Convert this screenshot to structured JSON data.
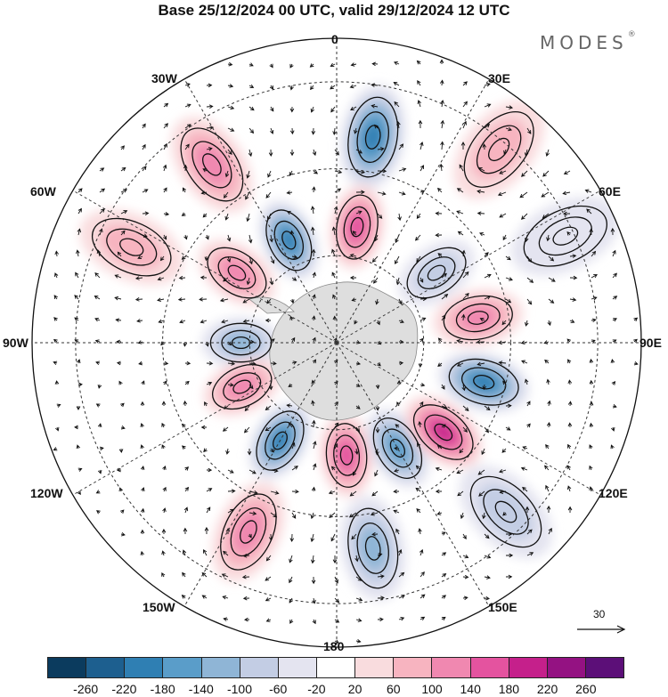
{
  "title": "Base 25/12/2024 00 UTC, valid 29/12/2024 12 UTC",
  "brand": {
    "name": "MODES",
    "mark": "®"
  },
  "longitude_labels": {
    "lon_0": "0",
    "lon_30e": "30E",
    "lon_60e": "60E",
    "lon_90e": "90E",
    "lon_120e": "120E",
    "lon_150e": "150E",
    "lon_180": "180",
    "lon_150w": "150W",
    "lon_120w": "120W",
    "lon_90w": "90W",
    "lon_60w": "60W",
    "lon_30w": "30W"
  },
  "vector_reference": {
    "label": "30"
  },
  "colorbar": {
    "colors": [
      "#0b3b5e",
      "#1d5f8f",
      "#2f7fb3",
      "#5a9dc9",
      "#8fb5d6",
      "#c3cde4",
      "#e4e4f0",
      "#ffffff",
      "#f9dcde",
      "#f7b4c0",
      "#f088b0",
      "#e4539f",
      "#c5208b",
      "#941282",
      "#5c0f78"
    ],
    "ticks": [
      "-260",
      "-220",
      "-180",
      "-140",
      "-100",
      "-60",
      "-20",
      "20",
      "60",
      "100",
      "140",
      "180",
      "220",
      "260"
    ]
  },
  "anomaly_cells": [
    {
      "lon": 10,
      "colat": 48,
      "value": -200
    },
    {
      "lon": 40,
      "colat": 58,
      "value": 100
    },
    {
      "lon": -35,
      "colat": 50,
      "value": 140
    },
    {
      "lon": -25,
      "colat": 26,
      "value": -200
    },
    {
      "lon": 10,
      "colat": 27,
      "value": 160
    },
    {
      "lon": -55,
      "colat": 28,
      "value": 140
    },
    {
      "lon": -90,
      "colat": 22,
      "value": -140
    },
    {
      "lon": -115,
      "colat": 24,
      "value": 140
    },
    {
      "lon": -150,
      "colat": 26,
      "value": -200
    },
    {
      "lon": 175,
      "colat": 26,
      "value": 160
    },
    {
      "lon": 150,
      "colat": 28,
      "value": -160
    },
    {
      "lon": 130,
      "colat": 32,
      "value": 200
    },
    {
      "lon": 105,
      "colat": 35,
      "value": -200
    },
    {
      "lon": 80,
      "colat": 33,
      "value": 120
    },
    {
      "lon": 55,
      "colat": 28,
      "value": -80
    },
    {
      "lon": -155,
      "colat": 48,
      "value": 140
    },
    {
      "lon": 170,
      "colat": 48,
      "value": -120
    },
    {
      "lon": 135,
      "colat": 55,
      "value": -80
    },
    {
      "lon": -65,
      "colat": 52,
      "value": 80
    },
    {
      "lon": 65,
      "colat": 58,
      "value": -40
    }
  ]
}
